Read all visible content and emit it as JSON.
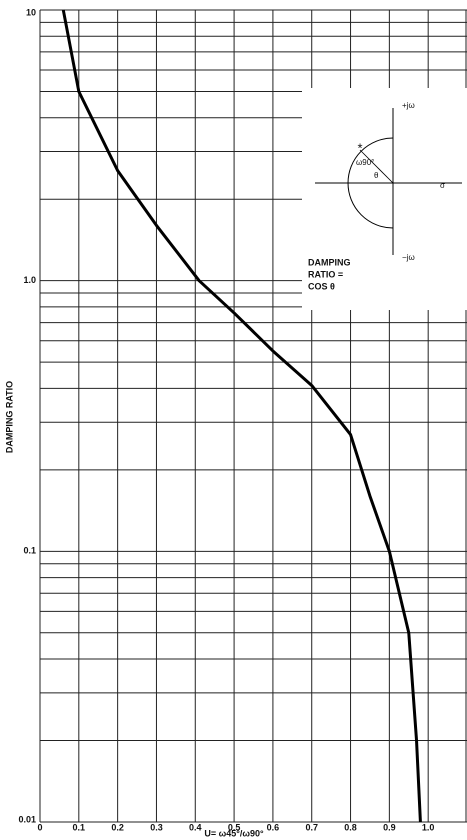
{
  "chart_data": {
    "type": "line",
    "log_y": true,
    "grid": true,
    "ylabel": "DAMPING RATIO",
    "xlabel": "U= ω45°/ω90°",
    "xlim": [
      0,
      1.1
    ],
    "xticks": [
      0,
      0.1,
      0.2,
      0.3,
      0.4,
      0.5,
      0.6,
      0.7,
      0.8,
      0.9,
      {
        "value": 1,
        "label": "1.0"
      }
    ],
    "ylim": [
      0.01,
      10
    ],
    "yticks": [
      0.01,
      0.1,
      {
        "value": 1,
        "label": "1.0"
      },
      10
    ],
    "y_grid": [
      0.02,
      0.03,
      0.04,
      0.05,
      0.06,
      0.07,
      0.08,
      0.09,
      0.2,
      0.3,
      0.4,
      0.5,
      0.6,
      0.7,
      0.8,
      0.9,
      2,
      3,
      4,
      5,
      6,
      7,
      8,
      9
    ],
    "series": [
      {
        "color": "#000000",
        "x": [
          0.06,
          0.1,
          0.2,
          0.3,
          0.41,
          0.5,
          0.6,
          0.7,
          0.8,
          0.85,
          0.9,
          0.95,
          0.97,
          0.98
        ],
        "values": [
          10,
          5,
          2.55,
          1.6,
          1.0,
          0.76,
          0.55,
          0.41,
          0.27,
          0.16,
          0.1,
          0.05,
          0.02,
          0.01
        ]
      }
    ],
    "inset": {
      "plus_jw": "+jω",
      "minus_jw": "−jω",
      "sigma": "σ",
      "w90": "ω90°",
      "theta": "θ",
      "caption": [
        "DAMPING",
        "RATIO =",
        "COS θ"
      ]
    }
  }
}
